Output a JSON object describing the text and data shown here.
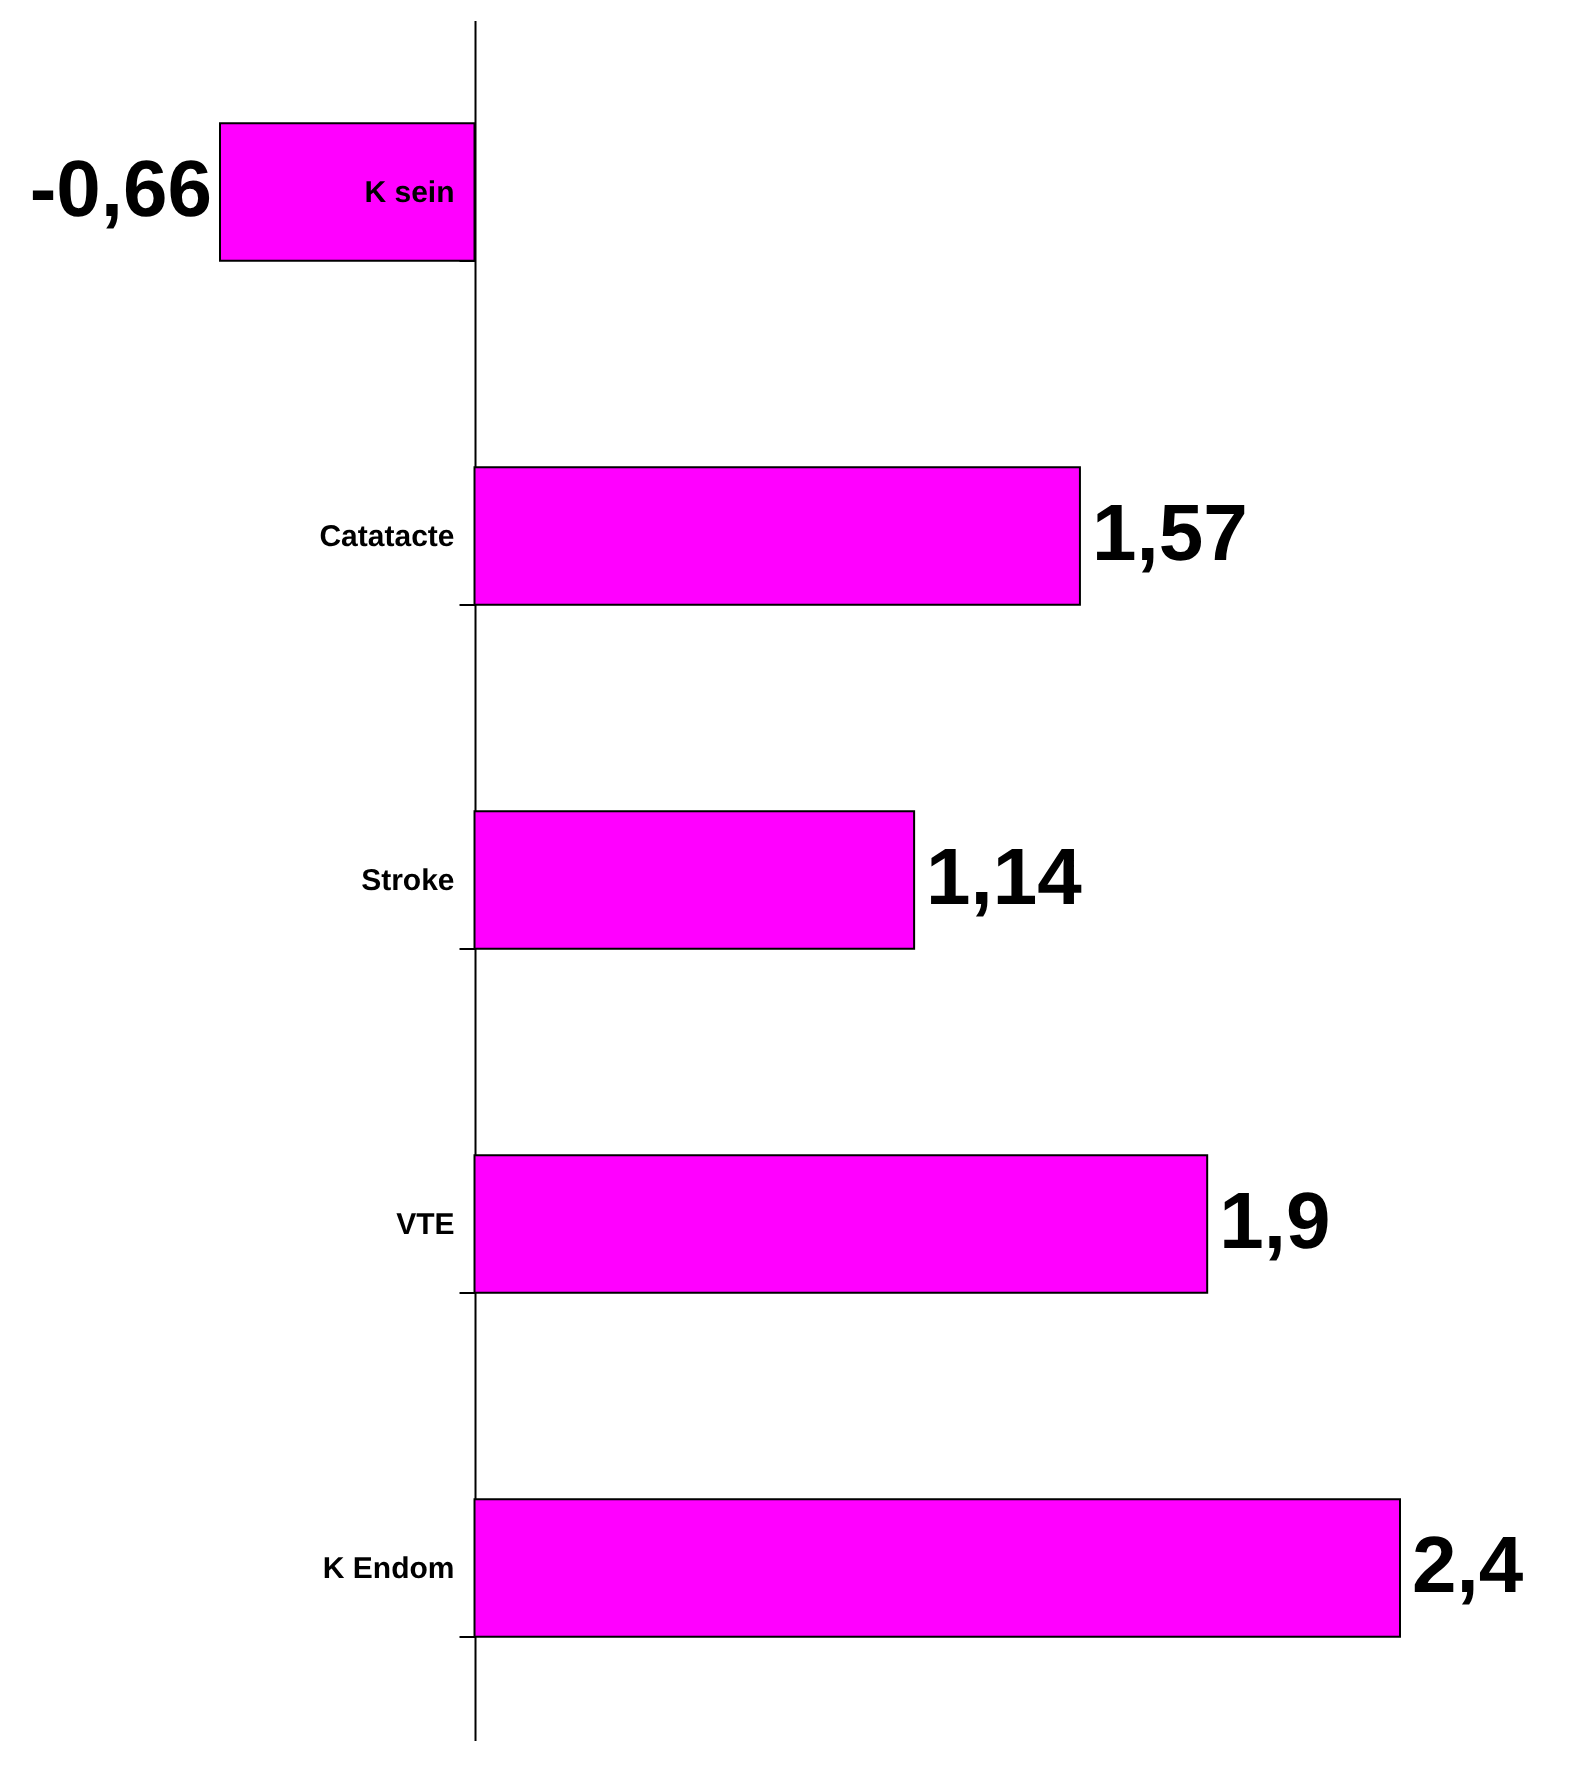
{
  "chart_data": {
    "type": "bar",
    "orientation": "horizontal",
    "categories": [
      "K sein",
      "Catatacte",
      "Stroke",
      "VTE",
      "K Endom"
    ],
    "values": [
      -0.66,
      1.57,
      1.14,
      1.9,
      2.4
    ],
    "color": "#ff00ff",
    "value_labels": [
      "-0,66",
      "1,57",
      "1,14",
      "1,9",
      "2,4"
    ]
  }
}
